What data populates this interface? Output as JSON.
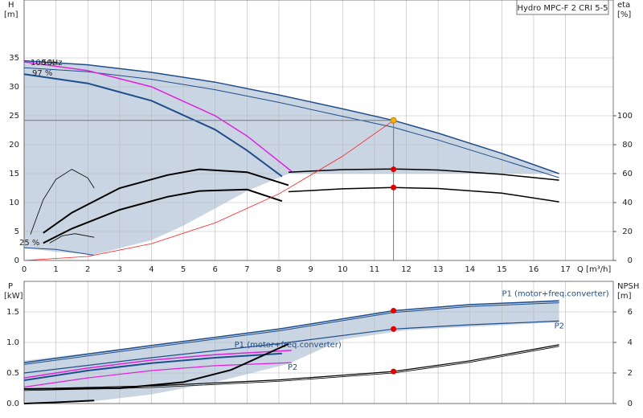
{
  "chart_data": [
    {
      "type": "line",
      "title": "Hydro MPC-F 2 CRI 5-5",
      "y_label": "H",
      "y_unit": "[m]",
      "y2_label": "eta",
      "y2_unit": "[%]",
      "x_label": "Q [m³/h]",
      "xlim": [
        0,
        18.5
      ],
      "xticks": [
        0,
        1,
        2,
        3,
        4,
        5,
        6,
        7,
        8,
        9,
        10,
        11,
        12,
        13,
        14,
        15,
        16,
        17
      ],
      "xtick_labels": true,
      "ylim": [
        0,
        45
      ],
      "yticks": [
        0,
        5,
        10,
        15,
        20,
        25,
        30,
        35
      ],
      "y2lim": [
        0,
        180
      ],
      "y2ticks": [
        0,
        20,
        40,
        60,
        80,
        100
      ],
      "grid": true,
      "annotations": [
        "100 %",
        "50Hz",
        "97 %",
        "25 %"
      ],
      "areas": [
        {
          "color": "#c9d5e2",
          "x": [
            0,
            2,
            4,
            6,
            8,
            10,
            11.6,
            13,
            15,
            16.8,
            8.3,
            7,
            6,
            5,
            4,
            2.2,
            1,
            0
          ],
          "values": [
            34.5,
            33.8,
            32.5,
            30.8,
            28.6,
            26.2,
            24.2,
            22,
            18.5,
            15,
            15,
            12,
            9,
            6,
            3.5,
            1,
            1.5,
            2.2
          ]
        }
      ],
      "series": [
        {
          "color": "#1f4e8c",
          "width": 1.5,
          "x": [
            0,
            2,
            4,
            6,
            8,
            10,
            11.6,
            13,
            15,
            16.8
          ],
          "values": [
            34.5,
            33.8,
            32.5,
            30.8,
            28.6,
            26.2,
            24.2,
            22,
            18.5,
            15
          ]
        },
        {
          "color": "#1f4e8c",
          "width": 1,
          "x": [
            0,
            2,
            4,
            6,
            8,
            10,
            11.6,
            13,
            15,
            16.8
          ],
          "values": [
            33.3,
            32.6,
            31.3,
            29.5,
            27.3,
            24.9,
            23,
            20.8,
            17.4,
            14.3
          ]
        },
        {
          "color": "#e020e0",
          "width": 1.5,
          "x": [
            0,
            2,
            4,
            6,
            7,
            8.4
          ],
          "values": [
            34.3,
            32.8,
            30,
            25,
            21.5,
            15.4
          ]
        },
        {
          "color": "#1f4e8c",
          "width": 2,
          "x": [
            0,
            2,
            4,
            6,
            7,
            8.1
          ],
          "values": [
            32.2,
            30.6,
            27.6,
            22.6,
            19,
            14.5
          ]
        },
        {
          "color": "#1f4e8c",
          "width": 1,
          "x": [
            0,
            1,
            2.2
          ],
          "values": [
            2.2,
            1.9,
            0.9
          ]
        },
        {
          "color": "#000",
          "width": 1.5,
          "axis": "y2",
          "x": [
            8.3,
            10,
            11.6,
            13,
            15,
            16.8
          ],
          "values": [
            61,
            62.8,
            63.2,
            62.5,
            59.5,
            55.5
          ]
        },
        {
          "color": "#000",
          "width": 1.5,
          "axis": "y2",
          "x": [
            8.3,
            10,
            11.6,
            13,
            15,
            16.8
          ],
          "values": [
            47.5,
            49.5,
            50.4,
            49.7,
            46.5,
            40.5
          ]
        },
        {
          "color": "#000",
          "width": 2,
          "axis": "y2",
          "x": [
            0.6,
            1.5,
            3,
            4.5,
            5.5,
            7,
            8.3
          ],
          "values": [
            19,
            33,
            50,
            59,
            63,
            61,
            52
          ]
        },
        {
          "color": "#000",
          "width": 2,
          "axis": "y2",
          "x": [
            0.6,
            1.5,
            3,
            4.5,
            5.5,
            7,
            8.1
          ],
          "values": [
            12,
            22,
            35,
            44,
            48,
            49,
            41
          ]
        },
        {
          "color": "#000",
          "width": 0.8,
          "axis": "y2",
          "x": [
            0.2,
            0.6,
            1,
            1.5,
            2,
            2.2
          ],
          "values": [
            18,
            42,
            56,
            63,
            57,
            50
          ]
        },
        {
          "color": "#000",
          "width": 0.8,
          "axis": "y2",
          "x": [
            0.8,
            1.2,
            1.6,
            2.2
          ],
          "values": [
            12,
            17,
            18.5,
            16
          ]
        },
        {
          "color": "#ff2020",
          "width": 0.8,
          "x": [
            0,
            2,
            4,
            6,
            8,
            10,
            11.6
          ],
          "values": [
            0,
            0.7,
            2.9,
            6.5,
            11.5,
            18,
            24.2
          ]
        }
      ],
      "points": [
        {
          "color": "#f0b020",
          "crosshair": true,
          "x": [
            11.6
          ],
          "values": [
            24.2
          ]
        },
        {
          "color": "#e00000",
          "axis": "y2",
          "x": [
            11.6,
            11.6
          ],
          "values": [
            63,
            50.4
          ]
        }
      ]
    },
    {
      "type": "line",
      "y_label": "P",
      "y_unit": "[kW]",
      "y2_label": "NPSH",
      "y2_unit": "[m]",
      "xlim": [
        0,
        18.5
      ],
      "xticks": [
        0,
        1,
        2,
        3,
        4,
        5,
        6,
        7,
        8,
        9,
        10,
        11,
        12,
        13,
        14,
        15,
        16,
        17
      ],
      "xtick_labels": false,
      "ylim": [
        0,
        2
      ],
      "yticks": [
        {
          "value": 0,
          "label": "0.0"
        },
        {
          "value": 0.5,
          "label": "0.5"
        },
        {
          "value": 1,
          "label": "1.0"
        },
        {
          "value": 1.5,
          "label": "1.5"
        }
      ],
      "y2lim": [
        0,
        8
      ],
      "y2ticks": [
        0,
        2,
        4,
        6
      ],
      "grid": true,
      "areas": [
        {
          "color": "#c9d5e2",
          "x": [
            0,
            4,
            8,
            11.6,
            14,
            16.8,
            16.8,
            12,
            10,
            8.3,
            6,
            4,
            2.2,
            0
          ],
          "values": [
            0.7,
            0.95,
            1.22,
            1.52,
            1.62,
            1.7,
            1.33,
            1.2,
            1.05,
            0.65,
            0.35,
            0.15,
            0.04,
            0.02
          ]
        }
      ],
      "series": [
        {
          "name": "P1 (motor+freq.converter)",
          "color": "#1f4e8c",
          "width": 1.5,
          "x": [
            0,
            4,
            8,
            11.6,
            14,
            16.8
          ],
          "values": [
            0.67,
            0.95,
            1.22,
            1.52,
            1.62,
            1.68
          ]
        },
        {
          "color": "#1f4e8c",
          "width": 1,
          "x": [
            0,
            4,
            8,
            11.6,
            14,
            16.8
          ],
          "values": [
            0.64,
            0.92,
            1.19,
            1.49,
            1.59,
            1.65
          ]
        },
        {
          "name": "P2",
          "color": "#1f4e8c",
          "width": 1.2,
          "x": [
            0,
            4,
            8,
            11.6,
            14,
            16.8
          ],
          "values": [
            0.5,
            0.75,
            0.98,
            1.22,
            1.29,
            1.35
          ]
        },
        {
          "name": "P1 (motor+freq.converter)",
          "color": "#e020e0",
          "width": 1.5,
          "x": [
            0,
            2,
            4,
            6,
            8.4
          ],
          "values": [
            0.42,
            0.58,
            0.71,
            0.8,
            0.87
          ]
        },
        {
          "name": "P2",
          "color": "#e020e0",
          "width": 1.2,
          "x": [
            0,
            2,
            4,
            6,
            8.4
          ],
          "values": [
            0.27,
            0.42,
            0.54,
            0.62,
            0.67
          ]
        },
        {
          "color": "#1f4e8c",
          "width": 2,
          "x": [
            0,
            2,
            4,
            6,
            8.1
          ],
          "values": [
            0.38,
            0.54,
            0.66,
            0.75,
            0.82
          ]
        },
        {
          "color": "#000",
          "width": 2,
          "x": [
            0,
            1,
            2.2
          ],
          "values": [
            0,
            0.02,
            0.05
          ]
        },
        {
          "color": "#000",
          "width": 1.2,
          "axis": "y2",
          "x": [
            0,
            4,
            8,
            11.6,
            14,
            16.8
          ],
          "values": [
            0.95,
            1.15,
            1.55,
            2.1,
            2.8,
            3.85
          ]
        },
        {
          "color": "#000",
          "width": 0.8,
          "axis": "y2",
          "x": [
            0,
            4,
            8,
            11.6,
            14,
            16.8
          ],
          "values": [
            0.85,
            1.05,
            1.45,
            2,
            2.7,
            3.75
          ]
        },
        {
          "color": "#000",
          "width": 2,
          "axis": "y2",
          "x": [
            0,
            3,
            5,
            6.5,
            8.3
          ],
          "values": [
            0.95,
            1,
            1.4,
            2.2,
            3.9
          ]
        }
      ],
      "points": [
        {
          "color": "#e00000",
          "x": [
            11.6,
            11.6
          ],
          "values": [
            1.52,
            1.22
          ]
        },
        {
          "color": "#e00000",
          "axis": "y2",
          "x": [
            11.6
          ],
          "values": [
            2.1
          ]
        }
      ]
    }
  ]
}
